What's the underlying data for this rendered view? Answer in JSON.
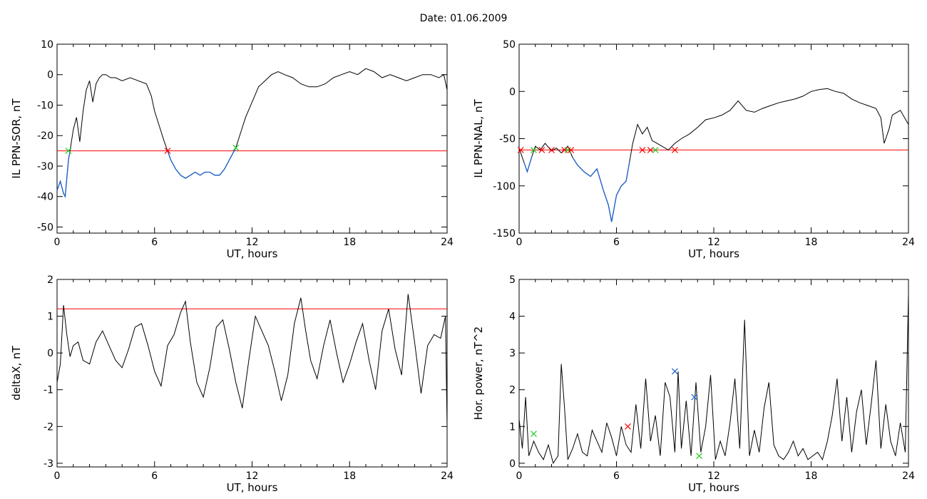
{
  "page": {
    "title": "Date:  01.06.2009"
  },
  "colors": {
    "series": "#000000",
    "threshold": "#ff0000",
    "highlight": "#1a5fcc",
    "marker_red": "#ff0000",
    "marker_green": "#22cc22",
    "marker_blue": "#1a5fcc"
  },
  "chart_data": [
    {
      "id": "ppn-sor",
      "type": "line",
      "xlabel": "UT, hours",
      "ylabel": "IL PPN-SOR, nT",
      "xlim": [
        0,
        24
      ],
      "ylim": [
        -52,
        10
      ],
      "xticks": [
        0,
        6,
        12,
        18,
        24
      ],
      "yticks": [
        10,
        0,
        -10,
        -20,
        -30,
        -40,
        -50
      ],
      "grid": false,
      "threshold": -25,
      "series": [
        {
          "x": [
            0,
            0.2,
            0.4,
            0.5,
            0.7,
            0.8,
            1.0,
            1.2,
            1.4,
            1.6,
            1.8,
            2.0,
            2.2,
            2.4,
            2.6,
            2.8,
            3.0,
            3.3,
            3.6,
            4.0,
            4.5,
            5.0,
            5.5,
            5.8,
            6.0,
            6.3,
            6.6,
            6.8,
            7.0,
            7.3,
            7.6,
            7.9,
            8.2,
            8.5,
            8.8,
            9.1,
            9.4,
            9.7,
            10.0,
            10.3,
            10.6,
            10.8,
            11.0,
            11.3,
            11.6,
            12.0,
            12.4,
            12.8,
            13.2,
            13.6,
            14.0,
            14.5,
            15.0,
            15.5,
            16.0,
            16.5,
            17.0,
            17.5,
            18.0,
            18.5,
            19.0,
            19.5,
            20.0,
            20.5,
            21.0,
            21.5,
            22.0,
            22.5,
            23.0,
            23.5,
            23.8,
            24.0
          ],
          "values": [
            -38,
            -35,
            -39,
            -40,
            -28,
            -25,
            -18,
            -14,
            -22,
            -12,
            -5,
            -2,
            -9,
            -3,
            -1,
            0,
            0,
            -1,
            -1,
            -2,
            -1,
            -2,
            -3,
            -7,
            -12,
            -17,
            -22,
            -25,
            -28,
            -31,
            -33,
            -34,
            -33,
            -32,
            -33,
            -32,
            -32,
            -33,
            -33,
            -31,
            -28,
            -26,
            -24,
            -19,
            -14,
            -9,
            -4,
            -2,
            0,
            1,
            0,
            -1,
            -3,
            -4,
            -4,
            -3,
            -1,
            0,
            1,
            0,
            2,
            1,
            -1,
            0,
            -1,
            -2,
            -1,
            0,
            0,
            -1,
            0,
            -5
          ]
        }
      ],
      "markers": [
        {
          "x": 0.7,
          "y": -25,
          "color": "green"
        },
        {
          "x": 6.8,
          "y": -25,
          "color": "red"
        },
        {
          "x": 11.0,
          "y": -24,
          "color": "green"
        }
      ]
    },
    {
      "id": "ppn-nal",
      "type": "line",
      "xlabel": "UT, hours",
      "ylabel": "IL PPN-NAL, nT",
      "xlim": [
        0,
        24
      ],
      "ylim": [
        -150,
        50
      ],
      "xticks": [
        0,
        6,
        12,
        18,
        24
      ],
      "yticks": [
        50,
        0,
        -50,
        -100,
        -150
      ],
      "grid": false,
      "threshold": -62,
      "series": [
        {
          "x": [
            0,
            0.3,
            0.5,
            0.8,
            1.0,
            1.3,
            1.6,
            2.0,
            2.3,
            2.6,
            3.0,
            3.3,
            3.6,
            4.0,
            4.4,
            4.8,
            5.2,
            5.5,
            5.7,
            6.0,
            6.3,
            6.6,
            6.8,
            7.0,
            7.3,
            7.6,
            7.9,
            8.2,
            8.5,
            8.8,
            9.2,
            9.6,
            10.0,
            10.5,
            11.0,
            11.5,
            12.0,
            12.5,
            13.0,
            13.5,
            14.0,
            14.5,
            15.0,
            15.5,
            16.0,
            16.5,
            17.0,
            17.5,
            18.0,
            18.5,
            19.0,
            19.5,
            20.0,
            20.5,
            21.0,
            21.5,
            22.0,
            22.3,
            22.5,
            22.8,
            23.0,
            23.5,
            24.0
          ],
          "values": [
            -60,
            -75,
            -85,
            -68,
            -58,
            -62,
            -55,
            -63,
            -60,
            -65,
            -58,
            -70,
            -78,
            -85,
            -90,
            -82,
            -105,
            -120,
            -138,
            -110,
            -100,
            -95,
            -75,
            -55,
            -35,
            -45,
            -38,
            -52,
            -55,
            -58,
            -62,
            -55,
            -50,
            -45,
            -38,
            -30,
            -28,
            -25,
            -20,
            -10,
            -20,
            -22,
            -18,
            -15,
            -12,
            -10,
            -8,
            -5,
            0,
            2,
            3,
            0,
            -2,
            -8,
            -12,
            -15,
            -18,
            -28,
            -55,
            -40,
            -25,
            -20,
            -35
          ]
        }
      ],
      "markers": [
        {
          "x": 0.1,
          "y": -62,
          "color": "red"
        },
        {
          "x": 0.9,
          "y": -62,
          "color": "green"
        },
        {
          "x": 1.4,
          "y": -62,
          "color": "red"
        },
        {
          "x": 2.0,
          "y": -62,
          "color": "red"
        },
        {
          "x": 2.8,
          "y": -62,
          "color": "red"
        },
        {
          "x": 3.0,
          "y": -62,
          "color": "green"
        },
        {
          "x": 3.2,
          "y": -62,
          "color": "red"
        },
        {
          "x": 7.6,
          "y": -62,
          "color": "red"
        },
        {
          "x": 8.1,
          "y": -62,
          "color": "red"
        },
        {
          "x": 8.4,
          "y": -62,
          "color": "green"
        },
        {
          "x": 9.6,
          "y": -62,
          "color": "red"
        }
      ]
    },
    {
      "id": "deltax",
      "type": "line",
      "xlabel": "UT, hours",
      "ylabel": "deltaX, nT",
      "xlim": [
        0,
        24
      ],
      "ylim": [
        -3.1,
        2
      ],
      "xticks": [
        0,
        6,
        12,
        18,
        24
      ],
      "yticks": [
        2,
        1,
        0,
        -1,
        -2,
        -3
      ],
      "grid": false,
      "threshold": 1.2,
      "series": [
        {
          "x": [
            0,
            0.2,
            0.4,
            0.6,
            0.8,
            1.0,
            1.3,
            1.6,
            2.0,
            2.4,
            2.8,
            3.2,
            3.6,
            4.0,
            4.4,
            4.8,
            5.2,
            5.6,
            6.0,
            6.4,
            6.8,
            7.2,
            7.6,
            7.9,
            8.2,
            8.6,
            9.0,
            9.4,
            9.8,
            10.2,
            10.6,
            11.0,
            11.4,
            11.8,
            12.2,
            12.6,
            13.0,
            13.4,
            13.8,
            14.2,
            14.6,
            15.0,
            15.3,
            15.6,
            16.0,
            16.4,
            16.8,
            17.2,
            17.6,
            18.0,
            18.4,
            18.8,
            19.2,
            19.6,
            20.0,
            20.4,
            20.8,
            21.2,
            21.6,
            22.0,
            22.4,
            22.8,
            23.2,
            23.6,
            23.9,
            24.0
          ],
          "values": [
            -0.8,
            -0.3,
            1.3,
            0.5,
            -0.1,
            0.2,
            0.3,
            -0.2,
            -0.3,
            0.3,
            0.6,
            0.2,
            -0.2,
            -0.4,
            0.1,
            0.7,
            0.8,
            0.2,
            -0.5,
            -0.9,
            0.2,
            0.5,
            1.1,
            1.4,
            0.3,
            -0.8,
            -1.2,
            -0.4,
            0.7,
            0.9,
            0.1,
            -0.8,
            -1.5,
            -0.2,
            1.0,
            0.6,
            0.2,
            -0.5,
            -1.3,
            -0.6,
            0.8,
            1.5,
            0.6,
            -0.2,
            -0.7,
            0.2,
            0.9,
            0.0,
            -0.8,
            -0.3,
            0.3,
            0.8,
            -0.2,
            -1.0,
            0.6,
            1.2,
            0.1,
            -0.6,
            1.6,
            0.3,
            -1.1,
            0.2,
            0.5,
            0.4,
            1.0,
            -2.0
          ]
        }
      ],
      "markers": []
    },
    {
      "id": "hor-power",
      "type": "line",
      "xlabel": "UT, hours",
      "ylabel": "Hor. power, nT^2",
      "xlim": [
        0,
        24
      ],
      "ylim": [
        -0.1,
        5
      ],
      "xticks": [
        0,
        6,
        12,
        18,
        24
      ],
      "yticks": [
        5,
        4,
        3,
        2,
        1,
        0
      ],
      "grid": false,
      "threshold": null,
      "series": [
        {
          "x": [
            0,
            0.2,
            0.4,
            0.6,
            0.9,
            1.2,
            1.5,
            1.8,
            2.1,
            2.4,
            2.6,
            2.8,
            3.0,
            3.3,
            3.6,
            3.9,
            4.2,
            4.5,
            4.8,
            5.1,
            5.4,
            5.7,
            6.0,
            6.3,
            6.6,
            6.9,
            7.2,
            7.5,
            7.8,
            8.1,
            8.4,
            8.7,
            9.0,
            9.3,
            9.6,
            9.8,
            10.0,
            10.3,
            10.6,
            10.9,
            11.2,
            11.5,
            11.8,
            12.1,
            12.4,
            12.7,
            13.0,
            13.3,
            13.6,
            13.9,
            14.2,
            14.5,
            14.8,
            15.1,
            15.4,
            15.7,
            16.0,
            16.3,
            16.6,
            16.9,
            17.2,
            17.5,
            17.8,
            18.1,
            18.4,
            18.7,
            19.0,
            19.3,
            19.6,
            19.9,
            20.2,
            20.5,
            20.8,
            21.1,
            21.4,
            21.7,
            22.0,
            22.3,
            22.6,
            22.9,
            23.2,
            23.5,
            23.8,
            24.0
          ],
          "values": [
            1.2,
            0.4,
            1.8,
            0.2,
            0.6,
            0.3,
            0.1,
            0.5,
            0.0,
            0.2,
            2.7,
            1.5,
            0.1,
            0.4,
            0.8,
            0.3,
            0.2,
            0.9,
            0.6,
            0.3,
            1.1,
            0.7,
            0.2,
            1.0,
            0.5,
            0.3,
            1.6,
            0.4,
            2.3,
            0.6,
            1.3,
            0.2,
            2.2,
            1.8,
            0.3,
            2.5,
            0.4,
            1.7,
            0.2,
            2.2,
            0.3,
            1.0,
            2.4,
            0.1,
            0.6,
            0.2,
            1.1,
            2.3,
            0.4,
            3.9,
            0.2,
            0.9,
            0.3,
            1.5,
            2.2,
            0.5,
            0.2,
            0.1,
            0.3,
            0.6,
            0.2,
            0.4,
            0.1,
            0.2,
            0.3,
            0.1,
            0.6,
            1.3,
            2.3,
            0.6,
            1.8,
            0.3,
            1.4,
            2.0,
            0.5,
            1.6,
            2.8,
            0.4,
            1.6,
            0.6,
            0.2,
            1.1,
            0.3,
            4.6
          ]
        }
      ],
      "markers": [
        {
          "x": 0.9,
          "y": 0.8,
          "color": "green"
        },
        {
          "x": 6.7,
          "y": 1.0,
          "color": "red"
        },
        {
          "x": 9.6,
          "y": 2.5,
          "color": "blue"
        },
        {
          "x": 10.8,
          "y": 1.8,
          "color": "blue"
        },
        {
          "x": 11.1,
          "y": 0.2,
          "color": "green"
        }
      ]
    }
  ]
}
